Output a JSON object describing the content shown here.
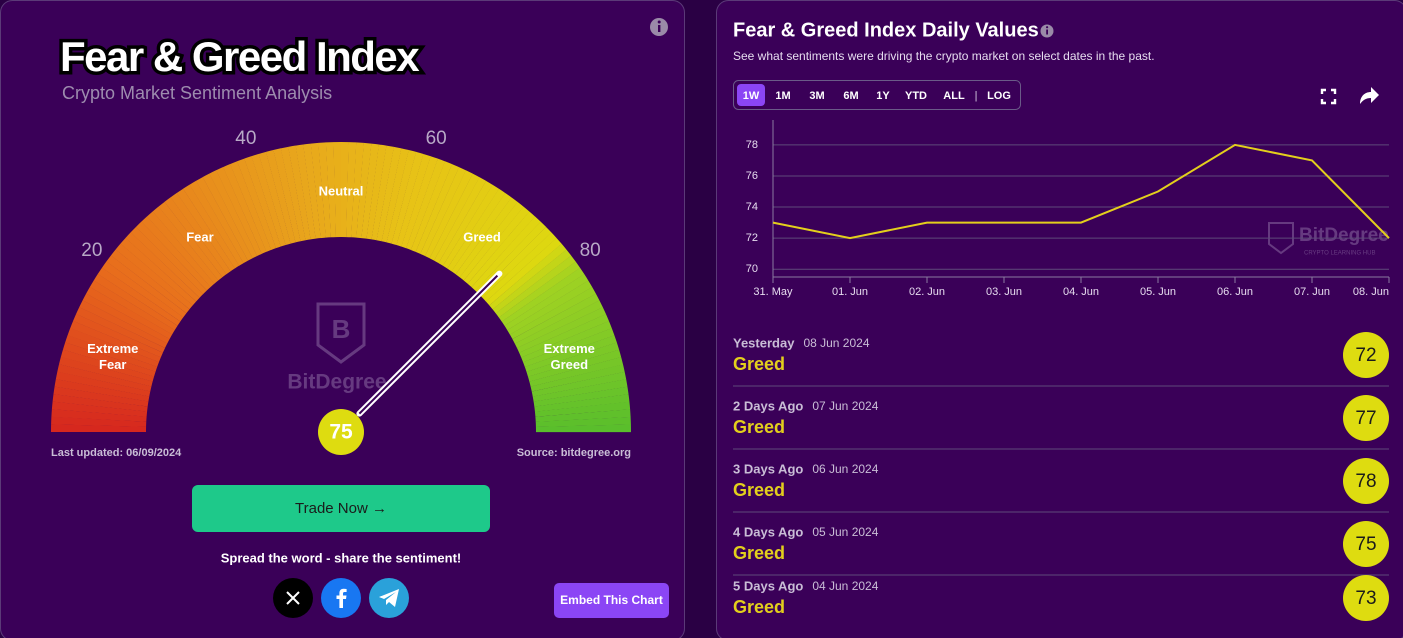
{
  "gauge": {
    "title": "Fear & Greed Index",
    "subtitle": "Crypto Market Sentiment Analysis",
    "ticks": [
      20,
      40,
      60,
      80
    ],
    "zones": [
      "Extreme Fear",
      "Fear",
      "Neutral",
      "Greed",
      "Extreme Greed"
    ],
    "value": 75,
    "watermark": "BitDegree",
    "last_updated": "Last updated: 06/09/2024",
    "source": "Source: bitdegree.org"
  },
  "trade_button": "Trade Now →",
  "share_text": "Spread the word - share the sentiment!",
  "embed_button": "Embed This Chart",
  "chart_data": {
    "type": "line",
    "title": "Fear & Greed Index Daily Values",
    "subtitle": "See what sentiments were driving the crypto market on select dates in the past.",
    "ranges": [
      "1W",
      "1M",
      "3M",
      "6M",
      "1Y",
      "YTD",
      "ALL",
      "LOG"
    ],
    "active_range": "1W",
    "categories": [
      "31. May",
      "01. Jun",
      "02. Jun",
      "03. Jun",
      "04. Jun",
      "05. Jun",
      "06. Jun",
      "07. Jun",
      "08. Jun"
    ],
    "values": [
      73,
      72,
      73,
      73,
      73,
      75,
      78,
      77,
      72
    ],
    "color": "#e3cf1c",
    "ylim": [
      69.5,
      79.6
    ],
    "yticks": [
      70,
      72,
      74,
      76,
      78
    ],
    "grid": true,
    "watermark": "BitDegree",
    "watermark_tagline": "CRYPTO LEARNING HUB"
  },
  "history": [
    {
      "when": "Yesterday",
      "date": "08 Jun 2024",
      "label": "Greed",
      "value": 72
    },
    {
      "when": "2 Days Ago",
      "date": "07 Jun 2024",
      "label": "Greed",
      "value": 77
    },
    {
      "when": "3 Days Ago",
      "date": "06 Jun 2024",
      "label": "Greed",
      "value": 78
    },
    {
      "when": "4 Days Ago",
      "date": "05 Jun 2024",
      "label": "Greed",
      "value": 75
    },
    {
      "when": "5 Days Ago",
      "date": "04 Jun 2024",
      "label": "Greed",
      "value": 73
    }
  ]
}
